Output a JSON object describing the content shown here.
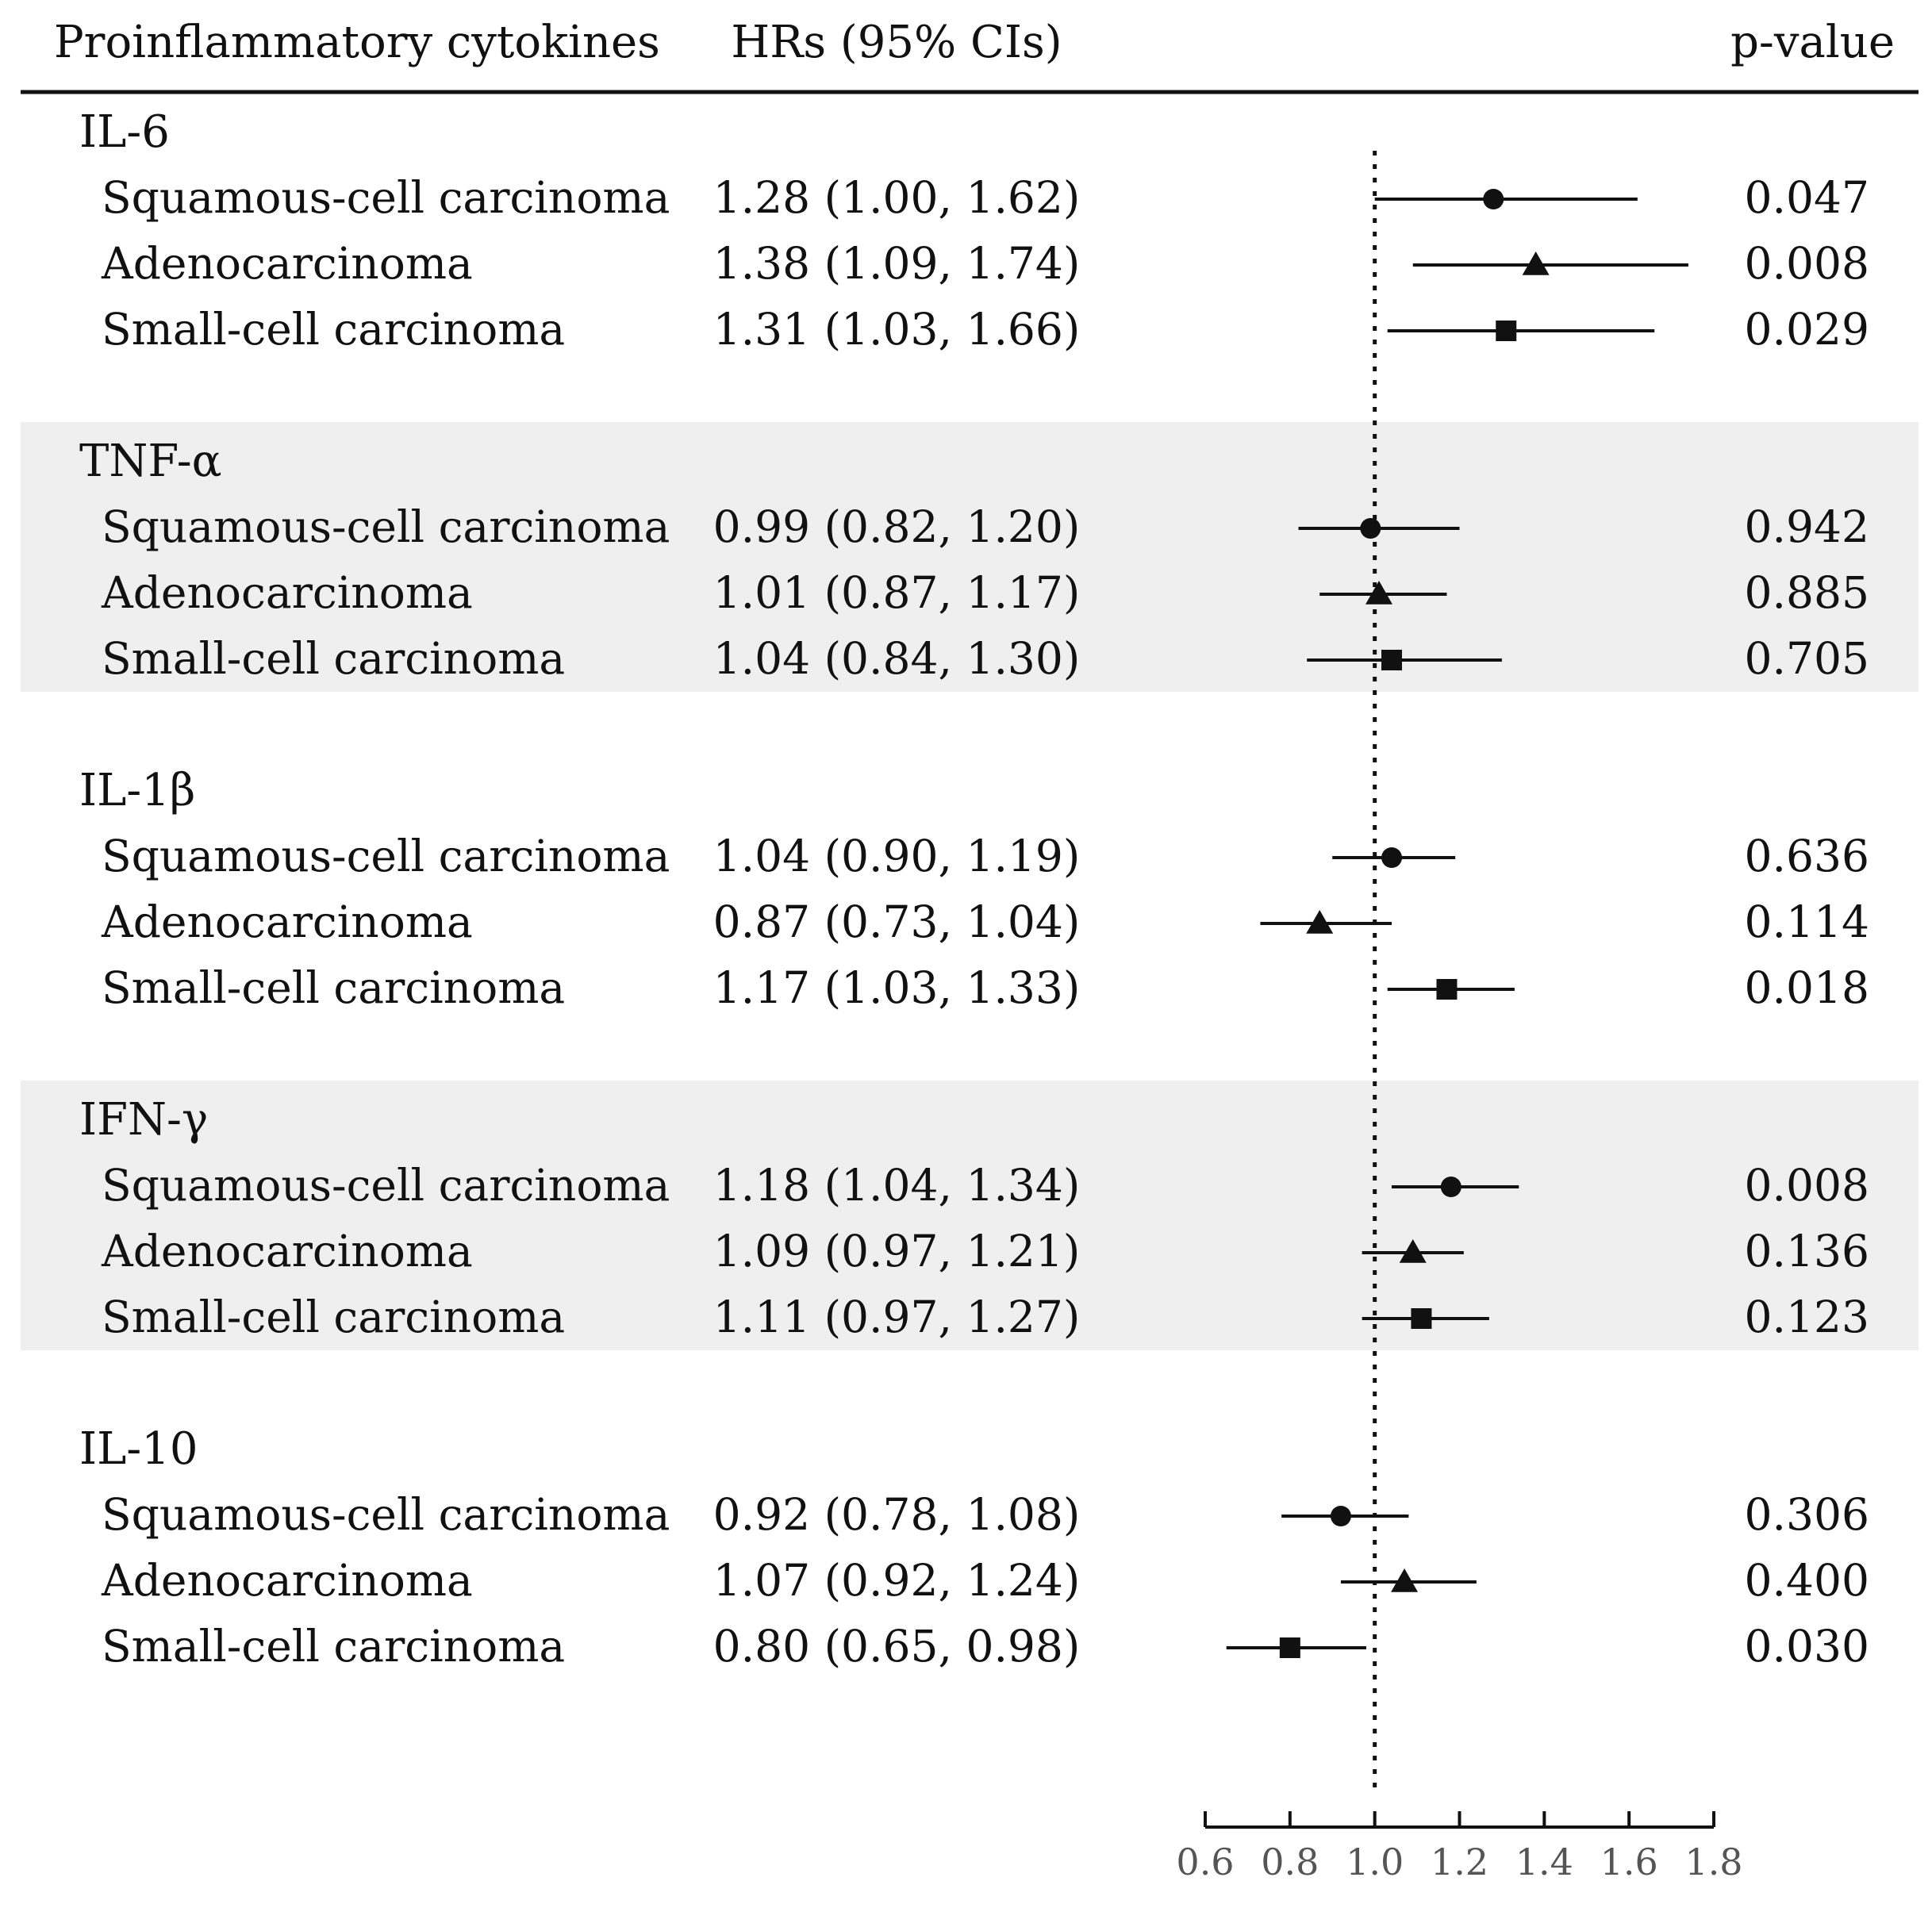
{
  "header": {
    "col1": "Proinflammatory cytokines",
    "col2": "HRs (95% CIs)",
    "col3": "p-value"
  },
  "chart_data": {
    "type": "forest",
    "reference_line": 1.0,
    "xlim": [
      0.6,
      1.8
    ],
    "x_ticks": [
      "0.6",
      "0.8",
      "1.0",
      "1.2",
      "1.4",
      "1.6",
      "1.8"
    ],
    "marker_legend": {
      "Squamous-cell carcinoma": "circle",
      "Adenocarcinoma": "triangle",
      "Small-cell carcinoma": "square"
    },
    "groups": [
      {
        "name": "IL-6",
        "shaded": false,
        "rows": [
          {
            "label": "Squamous-cell carcinoma",
            "marker": "circle",
            "hr": 1.28,
            "lo": 1.0,
            "hi": 1.62,
            "ci_text": "1.28 (1.00, 1.62)",
            "p": "0.047"
          },
          {
            "label": "Adenocarcinoma",
            "marker": "triangle",
            "hr": 1.38,
            "lo": 1.09,
            "hi": 1.74,
            "ci_text": "1.38 (1.09, 1.74)",
            "p": "0.008"
          },
          {
            "label": "Small-cell carcinoma",
            "marker": "square",
            "hr": 1.31,
            "lo": 1.03,
            "hi": 1.66,
            "ci_text": "1.31 (1.03, 1.66)",
            "p": "0.029"
          }
        ]
      },
      {
        "name": "TNF-α",
        "shaded": true,
        "rows": [
          {
            "label": "Squamous-cell carcinoma",
            "marker": "circle",
            "hr": 0.99,
            "lo": 0.82,
            "hi": 1.2,
            "ci_text": "0.99 (0.82, 1.20)",
            "p": "0.942"
          },
          {
            "label": "Adenocarcinoma",
            "marker": "triangle",
            "hr": 1.01,
            "lo": 0.87,
            "hi": 1.17,
            "ci_text": "1.01 (0.87, 1.17)",
            "p": "0.885"
          },
          {
            "label": "Small-cell carcinoma",
            "marker": "square",
            "hr": 1.04,
            "lo": 0.84,
            "hi": 1.3,
            "ci_text": "1.04 (0.84, 1.30)",
            "p": "0.705"
          }
        ]
      },
      {
        "name": "IL-1β",
        "shaded": false,
        "rows": [
          {
            "label": "Squamous-cell carcinoma",
            "marker": "circle",
            "hr": 1.04,
            "lo": 0.9,
            "hi": 1.19,
            "ci_text": "1.04 (0.90, 1.19)",
            "p": "0.636"
          },
          {
            "label": "Adenocarcinoma",
            "marker": "triangle",
            "hr": 0.87,
            "lo": 0.73,
            "hi": 1.04,
            "ci_text": "0.87 (0.73, 1.04)",
            "p": "0.114"
          },
          {
            "label": "Small-cell carcinoma",
            "marker": "square",
            "hr": 1.17,
            "lo": 1.03,
            "hi": 1.33,
            "ci_text": "1.17 (1.03, 1.33)",
            "p": "0.018"
          }
        ]
      },
      {
        "name": "IFN-γ",
        "shaded": true,
        "rows": [
          {
            "label": "Squamous-cell carcinoma",
            "marker": "circle",
            "hr": 1.18,
            "lo": 1.04,
            "hi": 1.34,
            "ci_text": "1.18 (1.04, 1.34)",
            "p": "0.008"
          },
          {
            "label": "Adenocarcinoma",
            "marker": "triangle",
            "hr": 1.09,
            "lo": 0.97,
            "hi": 1.21,
            "ci_text": "1.09 (0.97, 1.21)",
            "p": "0.136"
          },
          {
            "label": "Small-cell carcinoma",
            "marker": "square",
            "hr": 1.11,
            "lo": 0.97,
            "hi": 1.27,
            "ci_text": "1.11 (0.97, 1.27)",
            "p": "0.123"
          }
        ]
      },
      {
        "name": "IL-10",
        "shaded": false,
        "rows": [
          {
            "label": "Squamous-cell carcinoma",
            "marker": "circle",
            "hr": 0.92,
            "lo": 0.78,
            "hi": 1.08,
            "ci_text": "0.92 (0.78, 1.08)",
            "p": "0.306"
          },
          {
            "label": "Adenocarcinoma",
            "marker": "triangle",
            "hr": 1.07,
            "lo": 0.92,
            "hi": 1.24,
            "ci_text": "1.07 (0.92, 1.24)",
            "p": "0.400"
          },
          {
            "label": "Small-cell carcinoma",
            "marker": "square",
            "hr": 0.8,
            "lo": 0.65,
            "hi": 0.98,
            "ci_text": "0.80 (0.65, 0.98)",
            "p": "0.030"
          }
        ]
      }
    ]
  },
  "colors": {
    "shade": "#efefef",
    "ink": "#111111",
    "tick_label": "#555555"
  }
}
